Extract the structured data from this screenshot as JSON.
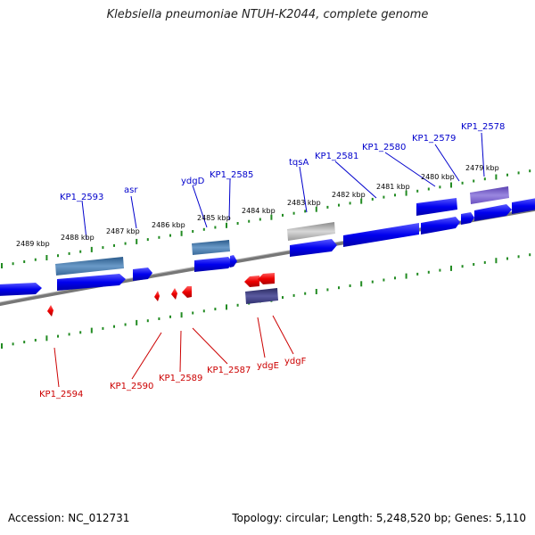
{
  "title": "Klebsiella pneumoniae NTUH-K2044, complete genome",
  "footer": {
    "accession": "Accession: NC_012731",
    "summary": "Topology: circular; Length: 5,248,520 bp; Genes: 5,110"
  },
  "colors": {
    "forward_label": "#0000cc",
    "reverse_label": "#cc0000",
    "forward_gene": "#0000ee",
    "reverse_gene": "#ee0000",
    "tick": "#228b22",
    "backbone": "#777777"
  },
  "scale_ticks": [
    "2489 kbp",
    "2488 kbp",
    "2487 kbp",
    "2486 kbp",
    "2485 kbp",
    "2484 kbp",
    "2483 kbp",
    "2482 kbp",
    "2481 kbp",
    "2480 kbp",
    "2479 kbp"
  ],
  "forward_labels": [
    "KP1_2593",
    "asr",
    "ydgD",
    "KP1_2585",
    "tqsA",
    "KP1_2581",
    "KP1_2580",
    "KP1_2579",
    "KP1_2578"
  ],
  "reverse_labels": [
    "KP1_2594",
    "KP1_2590",
    "KP1_2589",
    "KP1_2587",
    "ydgE",
    "ydgF"
  ]
}
